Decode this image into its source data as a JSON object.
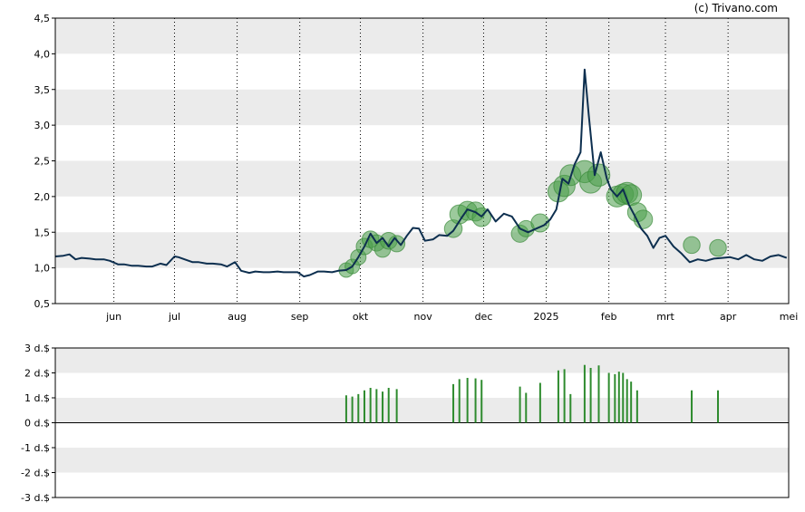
{
  "copyright": "(c) Trivano.com",
  "chart_data": [
    {
      "type": "line",
      "title": "",
      "xlabel": "",
      "ylabel": "",
      "ylim": [
        0.5,
        4.5
      ],
      "y_ticks": [
        "0,5",
        "1,0",
        "1,5",
        "2,0",
        "2,5",
        "3,0",
        "3,5",
        "4,0",
        "4,5"
      ],
      "y_tick_values": [
        0.5,
        1.0,
        1.5,
        2.0,
        2.5,
        3.0,
        3.5,
        4.0,
        4.5
      ],
      "x_ticks": [
        "jun",
        "jul",
        "aug",
        "sep",
        "okt",
        "nov",
        "dec",
        "2025",
        "feb",
        "mrt",
        "apr",
        "mei"
      ],
      "x_tick_dates": [
        "2024-06-01",
        "2024-07-01",
        "2024-08-01",
        "2024-09-01",
        "2024-10-01",
        "2024-11-01",
        "2024-12-01",
        "2025-01-01",
        "2025-02-01",
        "2025-03-01",
        "2025-04-01",
        "2025-05-01"
      ],
      "xlim": [
        "2024-05-03",
        "2025-05-01"
      ],
      "grid": "vertical dotted lines at month ticks; alternating gray horizontal bands",
      "color": "#0d2f4f",
      "series": [
        {
          "x": [
            "2024-05-03",
            "2024-05-07",
            "2024-05-10",
            "2024-05-13",
            "2024-05-16",
            "2024-05-20",
            "2024-05-23",
            "2024-05-27",
            "2024-05-30",
            "2024-06-03",
            "2024-06-06",
            "2024-06-10",
            "2024-06-13",
            "2024-06-17",
            "2024-06-20",
            "2024-06-24",
            "2024-06-27",
            "2024-07-01",
            "2024-07-03",
            "2024-07-06",
            "2024-07-10",
            "2024-07-13",
            "2024-07-17",
            "2024-07-20",
            "2024-07-24",
            "2024-07-27",
            "2024-07-31",
            "2024-08-03",
            "2024-08-07",
            "2024-08-10",
            "2024-08-14",
            "2024-08-17",
            "2024-08-21",
            "2024-08-24",
            "2024-08-28",
            "2024-08-31",
            "2024-09-03",
            "2024-09-06",
            "2024-09-10",
            "2024-09-13",
            "2024-09-17",
            "2024-09-20",
            "2024-09-24",
            "2024-09-27",
            "2024-09-30",
            "2024-10-03",
            "2024-10-06",
            "2024-10-09",
            "2024-10-12",
            "2024-10-15",
            "2024-10-18",
            "2024-10-21",
            "2024-10-24",
            "2024-10-27",
            "2024-10-30",
            "2024-11-02",
            "2024-11-06",
            "2024-11-09",
            "2024-11-13",
            "2024-11-16",
            "2024-11-20",
            "2024-11-23",
            "2024-11-27",
            "2024-11-30",
            "2024-12-03",
            "2024-12-07",
            "2024-12-11",
            "2024-12-15",
            "2024-12-19",
            "2024-12-23",
            "2024-12-27",
            "2024-12-31",
            "2025-01-03",
            "2025-01-06",
            "2025-01-09",
            "2025-01-12",
            "2025-01-15",
            "2025-01-18",
            "2025-01-20",
            "2025-01-22",
            "2025-01-25",
            "2025-01-28",
            "2025-01-31",
            "2025-02-02",
            "2025-02-05",
            "2025-02-08",
            "2025-02-11",
            "2025-02-14",
            "2025-02-17",
            "2025-02-20",
            "2025-02-23",
            "2025-02-26",
            "2025-03-01",
            "2025-03-05",
            "2025-03-09",
            "2025-03-13",
            "2025-03-17",
            "2025-03-21",
            "2025-03-25",
            "2025-03-29",
            "2025-04-02",
            "2025-04-06",
            "2025-04-10",
            "2025-04-14",
            "2025-04-18",
            "2025-04-22",
            "2025-04-26",
            "2025-04-30"
          ],
          "values": [
            1.16,
            1.17,
            1.19,
            1.12,
            1.14,
            1.13,
            1.12,
            1.12,
            1.1,
            1.05,
            1.05,
            1.03,
            1.03,
            1.02,
            1.02,
            1.06,
            1.04,
            1.16,
            1.15,
            1.12,
            1.08,
            1.08,
            1.06,
            1.06,
            1.05,
            1.02,
            1.08,
            0.96,
            0.93,
            0.95,
            0.94,
            0.94,
            0.95,
            0.94,
            0.94,
            0.94,
            0.88,
            0.9,
            0.95,
            0.95,
            0.94,
            0.96,
            0.97,
            1.02,
            1.15,
            1.3,
            1.48,
            1.35,
            1.42,
            1.3,
            1.42,
            1.32,
            1.45,
            1.56,
            1.55,
            1.38,
            1.4,
            1.46,
            1.45,
            1.52,
            1.7,
            1.82,
            1.78,
            1.72,
            1.82,
            1.65,
            1.76,
            1.72,
            1.55,
            1.5,
            1.55,
            1.6,
            1.68,
            1.82,
            2.25,
            2.18,
            2.45,
            2.62,
            3.78,
            3.15,
            2.3,
            2.62,
            2.25,
            2.1,
            2.0,
            2.1,
            1.88,
            1.72,
            1.55,
            1.45,
            1.28,
            1.42,
            1.45,
            1.3,
            1.2,
            1.08,
            1.12,
            1.1,
            1.13,
            1.14,
            1.15,
            1.12,
            1.18,
            1.12,
            1.1,
            1.16,
            1.18,
            1.14
          ]
        }
      ],
      "markers": {
        "color": "#4a9e4a",
        "points": [
          {
            "x": "2024-09-24",
            "y": 0.97,
            "size": 0.6
          },
          {
            "x": "2024-09-27",
            "y": 1.02,
            "size": 0.6
          },
          {
            "x": "2024-09-30",
            "y": 1.15,
            "size": 0.7
          },
          {
            "x": "2024-10-03",
            "y": 1.3,
            "size": 0.8
          },
          {
            "x": "2024-10-06",
            "y": 1.4,
            "size": 0.85
          },
          {
            "x": "2024-10-09",
            "y": 1.35,
            "size": 0.8
          },
          {
            "x": "2024-10-12",
            "y": 1.26,
            "size": 0.75
          },
          {
            "x": "2024-10-15",
            "y": 1.38,
            "size": 0.85
          },
          {
            "x": "2024-10-19",
            "y": 1.34,
            "size": 0.8
          },
          {
            "x": "2024-11-16",
            "y": 1.55,
            "size": 0.95
          },
          {
            "x": "2024-11-19",
            "y": 1.75,
            "size": 1.1
          },
          {
            "x": "2024-11-23",
            "y": 1.8,
            "size": 1.1
          },
          {
            "x": "2024-11-27",
            "y": 1.79,
            "size": 1.1
          },
          {
            "x": "2024-11-30",
            "y": 1.71,
            "size": 1.05
          },
          {
            "x": "2024-12-19",
            "y": 1.48,
            "size": 0.9
          },
          {
            "x": "2024-12-22",
            "y": 1.55,
            "size": 0.8
          },
          {
            "x": "2024-12-29",
            "y": 1.63,
            "size": 1.0
          },
          {
            "x": "2025-01-07",
            "y": 2.07,
            "size": 1.3
          },
          {
            "x": "2025-01-10",
            "y": 2.15,
            "size": 1.35
          },
          {
            "x": "2025-01-13",
            "y": 2.3,
            "size": 1.3
          },
          {
            "x": "2025-01-20",
            "y": 2.35,
            "size": 1.45
          },
          {
            "x": "2025-01-23",
            "y": 2.2,
            "size": 1.4
          },
          {
            "x": "2025-01-27",
            "y": 2.3,
            "size": 1.45
          },
          {
            "x": "2025-02-05",
            "y": 2.0,
            "size": 1.3
          },
          {
            "x": "2025-02-08",
            "y": 2.03,
            "size": 1.3
          },
          {
            "x": "2025-02-10",
            "y": 2.05,
            "size": 1.35
          },
          {
            "x": "2025-02-12",
            "y": 2.02,
            "size": 1.3
          },
          {
            "x": "2025-02-15",
            "y": 1.78,
            "size": 1.1
          },
          {
            "x": "2025-02-18",
            "y": 1.68,
            "size": 1.05
          },
          {
            "x": "2025-03-14",
            "y": 1.32,
            "size": 0.85
          },
          {
            "x": "2025-03-27",
            "y": 1.28,
            "size": 0.85
          }
        ]
      }
    },
    {
      "type": "bar",
      "title": "",
      "xlabel": "",
      "ylabel": "",
      "ylim": [
        -3,
        3
      ],
      "y_ticks": [
        "3 d.$",
        "2 d.$",
        "1 d.$",
        "0 d.$",
        "-1 d.$",
        "-2 d.$",
        "-3 d.$"
      ],
      "y_tick_values": [
        3,
        2,
        1,
        0,
        -1,
        -2,
        -3
      ],
      "color": "#2e8b2e",
      "grid": "alternating gray horizontal bands",
      "x": [
        "2024-09-24",
        "2024-09-27",
        "2024-09-30",
        "2024-10-03",
        "2024-10-06",
        "2024-10-09",
        "2024-10-12",
        "2024-10-15",
        "2024-10-19",
        "2024-11-16",
        "2024-11-19",
        "2024-11-23",
        "2024-11-27",
        "2024-11-30",
        "2024-12-19",
        "2024-12-22",
        "2024-12-29",
        "2025-01-07",
        "2025-01-10",
        "2025-01-13",
        "2025-01-20",
        "2025-01-23",
        "2025-01-27",
        "2025-02-01",
        "2025-02-04",
        "2025-02-06",
        "2025-02-08",
        "2025-02-10",
        "2025-02-12",
        "2025-02-15",
        "2025-03-14",
        "2025-03-27"
      ],
      "values": [
        1.1,
        1.05,
        1.15,
        1.3,
        1.4,
        1.35,
        1.25,
        1.4,
        1.35,
        1.55,
        1.75,
        1.8,
        1.78,
        1.72,
        1.45,
        1.2,
        1.6,
        2.1,
        2.15,
        1.15,
        2.32,
        2.2,
        2.3,
        2.0,
        1.95,
        2.05,
        2.0,
        1.75,
        1.65,
        1.3,
        1.3,
        1.3
      ]
    }
  ]
}
